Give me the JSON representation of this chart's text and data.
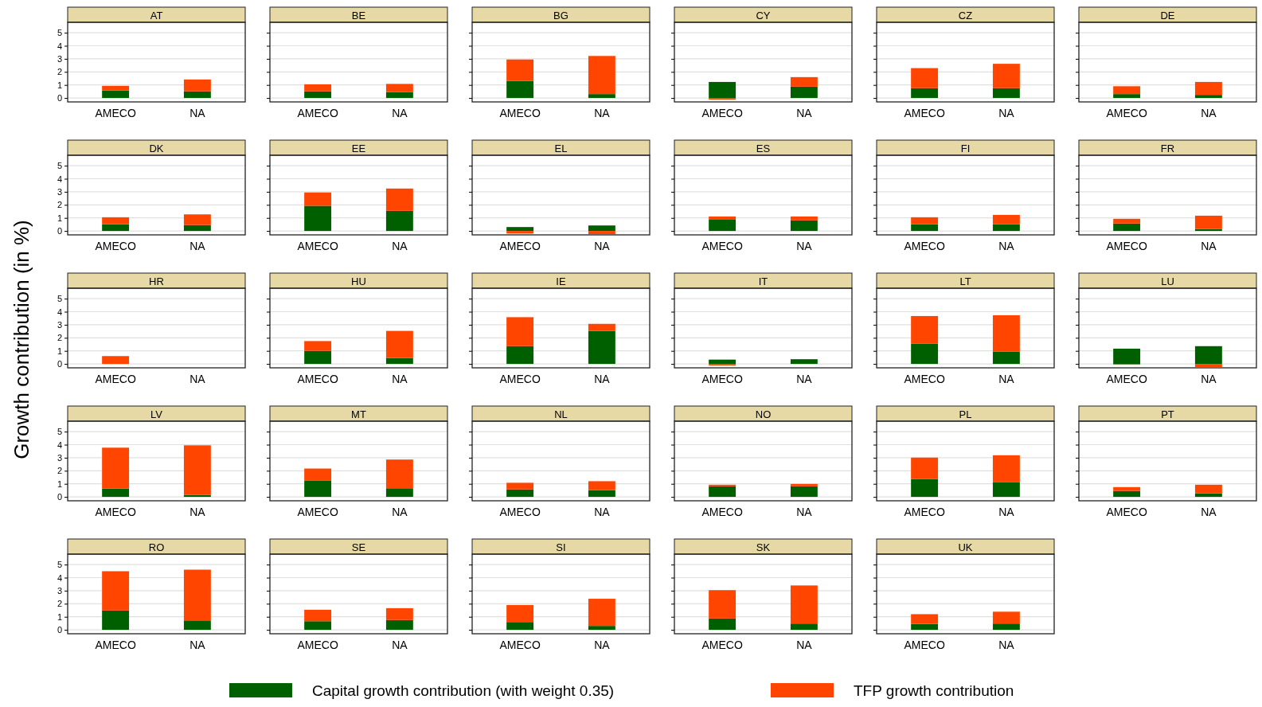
{
  "chart_data": [
    {
      "type": "bar",
      "title": "AT",
      "ylabel": "Growth contribution (in %)",
      "categories": [
        "AMECO",
        "NA"
      ],
      "stacked": true,
      "legend": "bottom",
      "grid": "y",
      "ylim": [
        -0.3,
        5.8
      ],
      "yticks": [
        0,
        1,
        2,
        3,
        4,
        5
      ],
      "series": [
        {
          "name": "Capital growth contribution (with weight 0.35)",
          "color": "#006000",
          "values": [
            0.57,
            0.51
          ]
        },
        {
          "name": "TFP growth contribution",
          "color": "#ff4500",
          "values": [
            0.36,
            0.91
          ]
        }
      ]
    },
    {
      "type": "bar",
      "title": "BE",
      "categories": [
        "AMECO",
        "NA"
      ],
      "stacked": true,
      "grid": "y",
      "tick_labels": "x",
      "ylim": [
        -0.3,
        5.8
      ],
      "yticks": [
        0,
        1,
        2,
        3,
        4,
        5
      ],
      "series": [
        {
          "color": "#006000",
          "values": [
            0.51,
            0.45
          ]
        },
        {
          "color": "#ff4500",
          "values": [
            0.54,
            0.63
          ]
        }
      ]
    },
    {
      "type": "bar",
      "title": "BG",
      "categories": [
        "AMECO",
        "NA"
      ],
      "stacked": true,
      "grid": "y",
      "tick_labels": "x",
      "ylim": [
        -0.3,
        5.8
      ],
      "yticks": [
        0,
        1,
        2,
        3,
        4,
        5
      ],
      "series": [
        {
          "color": "#006000",
          "values": [
            1.3,
            0.3
          ]
        },
        {
          "color": "#ff4500",
          "values": [
            1.65,
            2.92
          ]
        }
      ]
    },
    {
      "type": "bar",
      "title": "CY",
      "categories": [
        "AMECO",
        "NA"
      ],
      "stacked": true,
      "grid": "y",
      "tick_labels": "x",
      "ylim": [
        -0.3,
        5.8
      ],
      "yticks": [
        0,
        1,
        2,
        3,
        4,
        5
      ],
      "series": [
        {
          "color": "#006000",
          "values": [
            1.23,
            0.87
          ]
        },
        {
          "color": "#ff4500",
          "values": [
            -0.12,
            0.73
          ]
        }
      ]
    },
    {
      "type": "bar",
      "title": "CZ",
      "categories": [
        "AMECO",
        "NA"
      ],
      "stacked": true,
      "grid": "y",
      "tick_labels": "x",
      "ylim": [
        -0.3,
        5.8
      ],
      "yticks": [
        0,
        1,
        2,
        3,
        4,
        5
      ],
      "series": [
        {
          "color": "#006000",
          "values": [
            0.75,
            0.75
          ]
        },
        {
          "color": "#ff4500",
          "values": [
            1.54,
            1.87
          ]
        }
      ]
    },
    {
      "type": "bar",
      "title": "DE",
      "categories": [
        "AMECO",
        "NA"
      ],
      "stacked": true,
      "grid": "y",
      "tick_labels": "x",
      "ylim": [
        -0.3,
        5.8
      ],
      "yticks": [
        0,
        1,
        2,
        3,
        4,
        5
      ],
      "series": [
        {
          "color": "#006000",
          "values": [
            0.3,
            0.24
          ]
        },
        {
          "color": "#ff4500",
          "values": [
            0.6,
            0.99
          ]
        }
      ]
    },
    {
      "type": "bar",
      "title": "DK",
      "categories": [
        "AMECO",
        "NA"
      ],
      "stacked": true,
      "grid": "y",
      "ylim": [
        -0.3,
        5.8
      ],
      "yticks": [
        0,
        1,
        2,
        3,
        4,
        5
      ],
      "series": [
        {
          "color": "#006000",
          "values": [
            0.51,
            0.45
          ]
        },
        {
          "color": "#ff4500",
          "values": [
            0.54,
            0.82
          ]
        }
      ]
    },
    {
      "type": "bar",
      "title": "EE",
      "categories": [
        "AMECO",
        "NA"
      ],
      "stacked": true,
      "grid": "y",
      "tick_labels": "x",
      "ylim": [
        -0.3,
        5.8
      ],
      "yticks": [
        0,
        1,
        2,
        3,
        4,
        5
      ],
      "series": [
        {
          "color": "#006000",
          "values": [
            1.93,
            1.54
          ]
        },
        {
          "color": "#ff4500",
          "values": [
            1.02,
            1.71
          ]
        }
      ]
    },
    {
      "type": "bar",
      "title": "EL",
      "categories": [
        "AMECO",
        "NA"
      ],
      "stacked": true,
      "grid": "y",
      "tick_labels": "x",
      "ylim": [
        -0.3,
        5.8
      ],
      "yticks": [
        0,
        1,
        2,
        3,
        4,
        5
      ],
      "series": [
        {
          "color": "#006000",
          "values": [
            0.3,
            0.42
          ]
        },
        {
          "color": "#ff4500",
          "values": [
            -0.2,
            -0.25
          ]
        }
      ]
    },
    {
      "type": "bar",
      "title": "ES",
      "categories": [
        "AMECO",
        "NA"
      ],
      "stacked": true,
      "grid": "y",
      "tick_labels": "x",
      "ylim": [
        -0.3,
        5.8
      ],
      "yticks": [
        0,
        1,
        2,
        3,
        4,
        5
      ],
      "series": [
        {
          "color": "#006000",
          "values": [
            0.9,
            0.81
          ]
        },
        {
          "color": "#ff4500",
          "values": [
            0.21,
            0.3
          ]
        }
      ]
    },
    {
      "type": "bar",
      "title": "FI",
      "categories": [
        "AMECO",
        "NA"
      ],
      "stacked": true,
      "grid": "y",
      "tick_labels": "x",
      "ylim": [
        -0.3,
        5.8
      ],
      "yticks": [
        0,
        1,
        2,
        3,
        4,
        5
      ],
      "series": [
        {
          "color": "#006000",
          "values": [
            0.51,
            0.51
          ]
        },
        {
          "color": "#ff4500",
          "values": [
            0.54,
            0.72
          ]
        }
      ]
    },
    {
      "type": "bar",
      "title": "FR",
      "categories": [
        "AMECO",
        "NA"
      ],
      "stacked": true,
      "grid": "y",
      "tick_labels": "x",
      "ylim": [
        -0.3,
        5.8
      ],
      "yticks": [
        0,
        1,
        2,
        3,
        4,
        5
      ],
      "series": [
        {
          "color": "#006000",
          "values": [
            0.57,
            0.15
          ]
        },
        {
          "color": "#ff4500",
          "values": [
            0.36,
            1.02
          ]
        }
      ]
    },
    {
      "type": "bar",
      "title": "HR",
      "categories": [
        "AMECO",
        "NA"
      ],
      "stacked": true,
      "grid": "y",
      "ylim": [
        -0.3,
        5.8
      ],
      "yticks": [
        0,
        1,
        2,
        3,
        4,
        5
      ],
      "series": [
        {
          "color": "#006000",
          "values": [
            0,
            null
          ]
        },
        {
          "color": "#ff4500",
          "values": [
            0.6,
            null
          ]
        }
      ]
    },
    {
      "type": "bar",
      "title": "HU",
      "categories": [
        "AMECO",
        "NA"
      ],
      "stacked": true,
      "grid": "y",
      "tick_labels": "x",
      "ylim": [
        -0.3,
        5.8
      ],
      "yticks": [
        0,
        1,
        2,
        3,
        4,
        5
      ],
      "series": [
        {
          "color": "#006000",
          "values": [
            1.0,
            0.45
          ]
        },
        {
          "color": "#ff4500",
          "values": [
            0.75,
            2.08
          ]
        }
      ]
    },
    {
      "type": "bar",
      "title": "IE",
      "categories": [
        "AMECO",
        "NA"
      ],
      "stacked": true,
      "grid": "y",
      "tick_labels": "x",
      "ylim": [
        -0.3,
        5.8
      ],
      "yticks": [
        0,
        1,
        2,
        3,
        4,
        5
      ],
      "series": [
        {
          "color": "#006000",
          "values": [
            1.36,
            2.53
          ]
        },
        {
          "color": "#ff4500",
          "values": [
            2.22,
            0.54
          ]
        }
      ]
    },
    {
      "type": "bar",
      "title": "IT",
      "categories": [
        "AMECO",
        "NA"
      ],
      "stacked": true,
      "grid": "y",
      "tick_labels": "x",
      "ylim": [
        -0.3,
        5.8
      ],
      "yticks": [
        0,
        1,
        2,
        3,
        4,
        5
      ],
      "series": [
        {
          "color": "#006000",
          "values": [
            0.33,
            0.36
          ]
        },
        {
          "color": "#ff4500",
          "values": [
            -0.12,
            0
          ]
        }
      ]
    },
    {
      "type": "bar",
      "title": "LT",
      "categories": [
        "AMECO",
        "NA"
      ],
      "stacked": true,
      "grid": "y",
      "tick_labels": "x",
      "ylim": [
        -0.3,
        5.8
      ],
      "yticks": [
        0,
        1,
        2,
        3,
        4,
        5
      ],
      "series": [
        {
          "color": "#006000",
          "values": [
            1.54,
            0.93
          ]
        },
        {
          "color": "#ff4500",
          "values": [
            2.13,
            2.8
          ]
        }
      ]
    },
    {
      "type": "bar",
      "title": "LU",
      "categories": [
        "AMECO",
        "NA"
      ],
      "stacked": true,
      "grid": "y",
      "tick_labels": "x",
      "ylim": [
        -0.3,
        5.8
      ],
      "yticks": [
        0,
        1,
        2,
        3,
        4,
        5
      ],
      "series": [
        {
          "color": "#006000",
          "values": [
            1.17,
            1.36
          ]
        },
        {
          "color": "#ff4500",
          "values": [
            -0.06,
            -0.24
          ]
        }
      ]
    },
    {
      "type": "bar",
      "title": "LV",
      "categories": [
        "AMECO",
        "NA"
      ],
      "stacked": true,
      "grid": "y",
      "ylim": [
        -0.3,
        5.8
      ],
      "yticks": [
        0,
        1,
        2,
        3,
        4,
        5
      ],
      "series": [
        {
          "color": "#006000",
          "values": [
            0.63,
            0.15
          ]
        },
        {
          "color": "#ff4500",
          "values": [
            3.14,
            3.8
          ]
        }
      ]
    },
    {
      "type": "bar",
      "title": "MT",
      "categories": [
        "AMECO",
        "NA"
      ],
      "stacked": true,
      "grid": "y",
      "tick_labels": "x",
      "ylim": [
        -0.3,
        5.8
      ],
      "yticks": [
        0,
        1,
        2,
        3,
        4,
        5
      ],
      "series": [
        {
          "color": "#006000",
          "values": [
            1.23,
            0.66
          ]
        },
        {
          "color": "#ff4500",
          "values": [
            0.94,
            2.2
          ]
        }
      ]
    },
    {
      "type": "bar",
      "title": "NL",
      "categories": [
        "AMECO",
        "NA"
      ],
      "stacked": true,
      "grid": "y",
      "tick_labels": "x",
      "ylim": [
        -0.3,
        5.8
      ],
      "yticks": [
        0,
        1,
        2,
        3,
        4,
        5
      ],
      "series": [
        {
          "color": "#006000",
          "values": [
            0.57,
            0.51
          ]
        },
        {
          "color": "#ff4500",
          "values": [
            0.51,
            0.69
          ]
        }
      ]
    },
    {
      "type": "bar",
      "title": "NO",
      "categories": [
        "AMECO",
        "NA"
      ],
      "stacked": true,
      "grid": "y",
      "tick_labels": "x",
      "ylim": [
        -0.3,
        5.8
      ],
      "yticks": [
        0,
        1,
        2,
        3,
        4,
        5
      ],
      "series": [
        {
          "color": "#006000",
          "values": [
            0.81,
            0.81
          ]
        },
        {
          "color": "#ff4500",
          "values": [
            0.12,
            0.18
          ]
        }
      ]
    },
    {
      "type": "bar",
      "title": "PL",
      "categories": [
        "AMECO",
        "NA"
      ],
      "stacked": true,
      "grid": "y",
      "tick_labels": "x",
      "ylim": [
        -0.3,
        5.8
      ],
      "yticks": [
        0,
        1,
        2,
        3,
        4,
        5
      ],
      "series": [
        {
          "color": "#006000",
          "values": [
            1.36,
            1.11
          ]
        },
        {
          "color": "#ff4500",
          "values": [
            1.65,
            2.08
          ]
        }
      ]
    },
    {
      "type": "bar",
      "title": "PT",
      "categories": [
        "AMECO",
        "NA"
      ],
      "stacked": true,
      "grid": "y",
      "tick_labels": "x",
      "ylim": [
        -0.3,
        5.8
      ],
      "yticks": [
        0,
        1,
        2,
        3,
        4,
        5
      ],
      "series": [
        {
          "color": "#006000",
          "values": [
            0.45,
            0.27
          ]
        },
        {
          "color": "#ff4500",
          "values": [
            0.3,
            0.66
          ]
        }
      ]
    },
    {
      "type": "bar",
      "title": "RO",
      "categories": [
        "AMECO",
        "NA"
      ],
      "stacked": true,
      "grid": "y",
      "ylim": [
        -0.3,
        5.8
      ],
      "yticks": [
        0,
        1,
        2,
        3,
        4,
        5
      ],
      "series": [
        {
          "color": "#006000",
          "values": [
            1.48,
            0.72
          ]
        },
        {
          "color": "#ff4500",
          "values": [
            3.01,
            3.89
          ]
        }
      ]
    },
    {
      "type": "bar",
      "title": "SE",
      "categories": [
        "AMECO",
        "NA"
      ],
      "stacked": true,
      "grid": "y",
      "tick_labels": "x",
      "ylim": [
        -0.3,
        5.8
      ],
      "yticks": [
        0,
        1,
        2,
        3,
        4,
        5
      ],
      "series": [
        {
          "color": "#006000",
          "values": [
            0.66,
            0.75
          ]
        },
        {
          "color": "#ff4500",
          "values": [
            0.88,
            0.91
          ]
        }
      ]
    },
    {
      "type": "bar",
      "title": "SI",
      "categories": [
        "AMECO",
        "NA"
      ],
      "stacked": true,
      "grid": "y",
      "tick_labels": "x",
      "ylim": [
        -0.3,
        5.8
      ],
      "yticks": [
        0,
        1,
        2,
        3,
        4,
        5
      ],
      "series": [
        {
          "color": "#006000",
          "values": [
            0.6,
            0.3
          ]
        },
        {
          "color": "#ff4500",
          "values": [
            1.3,
            2.08
          ]
        }
      ]
    },
    {
      "type": "bar",
      "title": "SK",
      "categories": [
        "AMECO",
        "NA"
      ],
      "stacked": true,
      "grid": "y",
      "tick_labels": "x",
      "ylim": [
        -0.3,
        5.8
      ],
      "yticks": [
        0,
        1,
        2,
        3,
        4,
        5
      ],
      "series": [
        {
          "color": "#006000",
          "values": [
            0.87,
            0.48
          ]
        },
        {
          "color": "#ff4500",
          "values": [
            2.17,
            2.92
          ]
        }
      ]
    },
    {
      "type": "bar",
      "title": "UK",
      "categories": [
        "AMECO",
        "NA"
      ],
      "stacked": true,
      "grid": "y",
      "tick_labels": "x",
      "ylim": [
        -0.3,
        5.8
      ],
      "yticks": [
        0,
        1,
        2,
        3,
        4,
        5
      ],
      "series": [
        {
          "color": "#006000",
          "values": [
            0.45,
            0.48
          ]
        },
        {
          "color": "#ff4500",
          "values": [
            0.75,
            0.91
          ]
        }
      ]
    }
  ]
}
